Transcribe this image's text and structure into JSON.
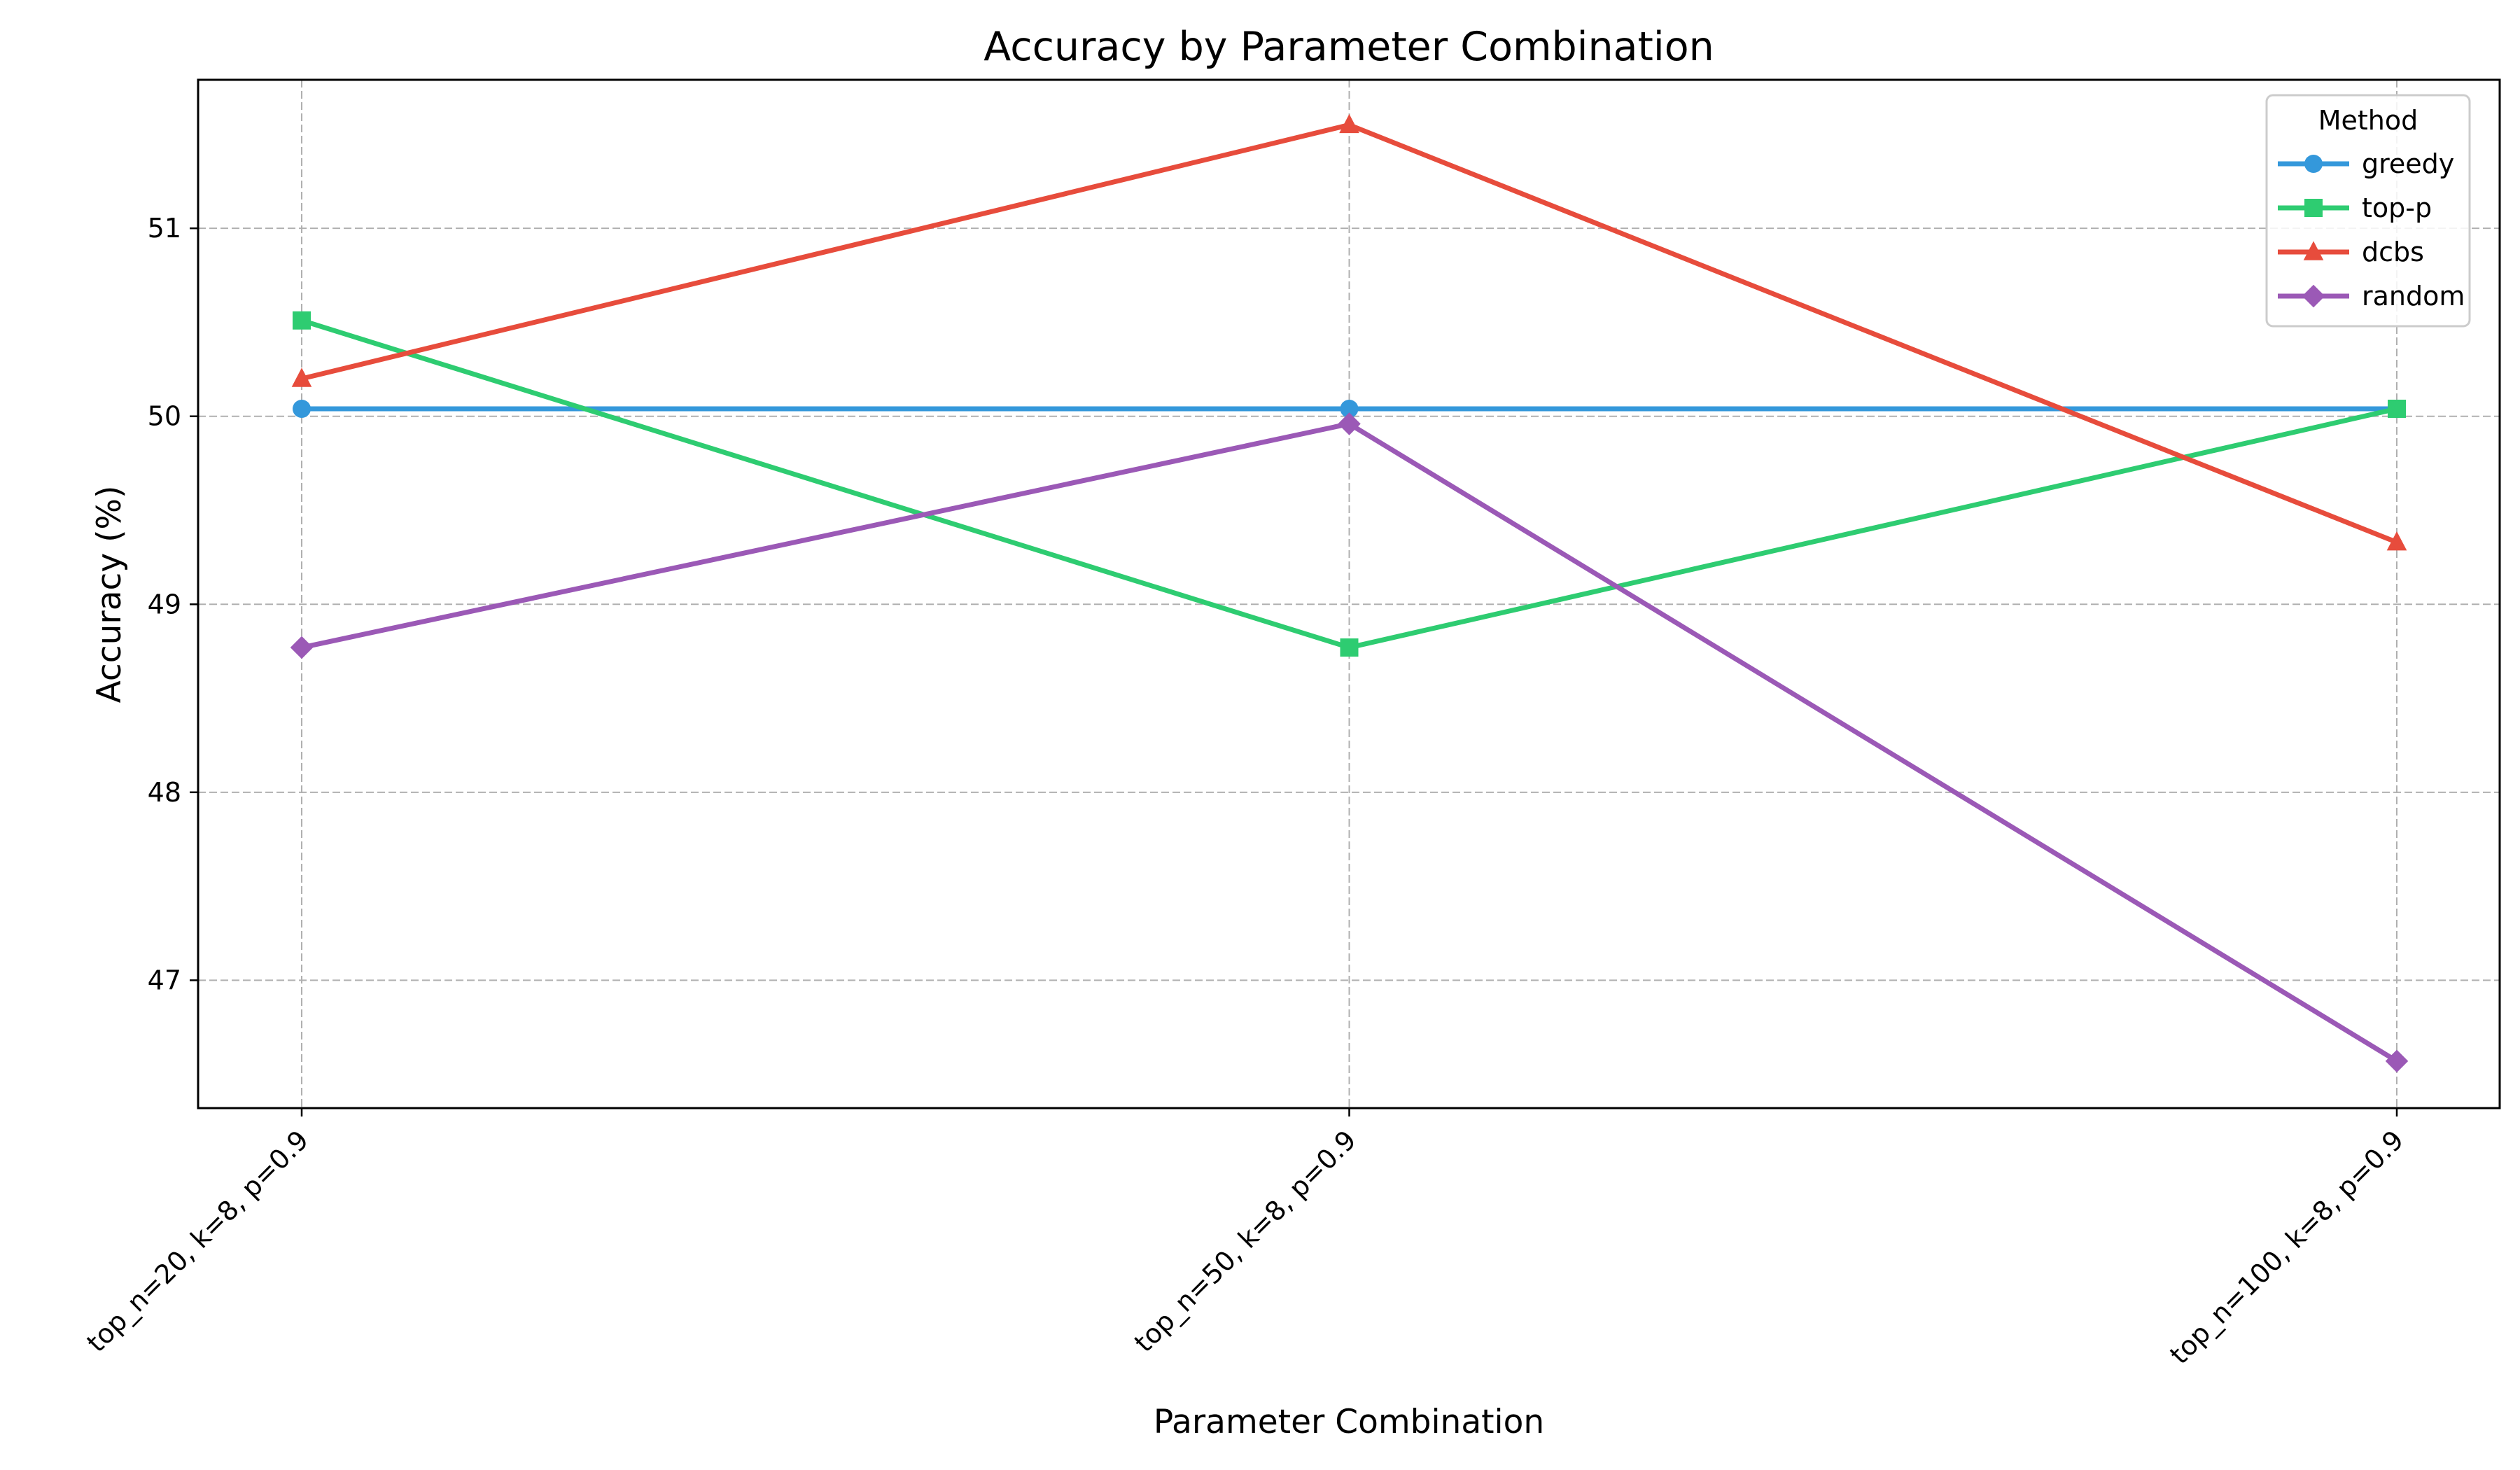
{
  "chart_data": {
    "type": "line",
    "title": "Accuracy by Parameter Combination",
    "xlabel": "Parameter Combination",
    "ylabel": "Accuracy (%)",
    "categories": [
      "top_n=20, k=8, p=0.9",
      "top_n=50, k=8, p=0.9",
      "top_n=100, k=8, p=0.9"
    ],
    "ylim": [
      46.32,
      51.79
    ],
    "yticks": [
      47,
      48,
      49,
      50,
      51
    ],
    "grid": true,
    "legend": {
      "title": "Method",
      "placement": "top-right"
    },
    "series": [
      {
        "name": "greedy",
        "values": [
          50.04,
          50.04,
          50.04
        ],
        "color": "#3498db",
        "marker": "circle"
      },
      {
        "name": "top-p",
        "values": [
          50.51,
          48.77,
          50.04
        ],
        "color": "#2ecc71",
        "marker": "square"
      },
      {
        "name": "dcbs",
        "values": [
          50.2,
          51.55,
          49.33
        ],
        "color": "#e74c3c",
        "marker": "triangle"
      },
      {
        "name": "random",
        "values": [
          48.77,
          49.96,
          46.57
        ],
        "color": "#9b59b6",
        "marker": "diamond"
      }
    ]
  }
}
